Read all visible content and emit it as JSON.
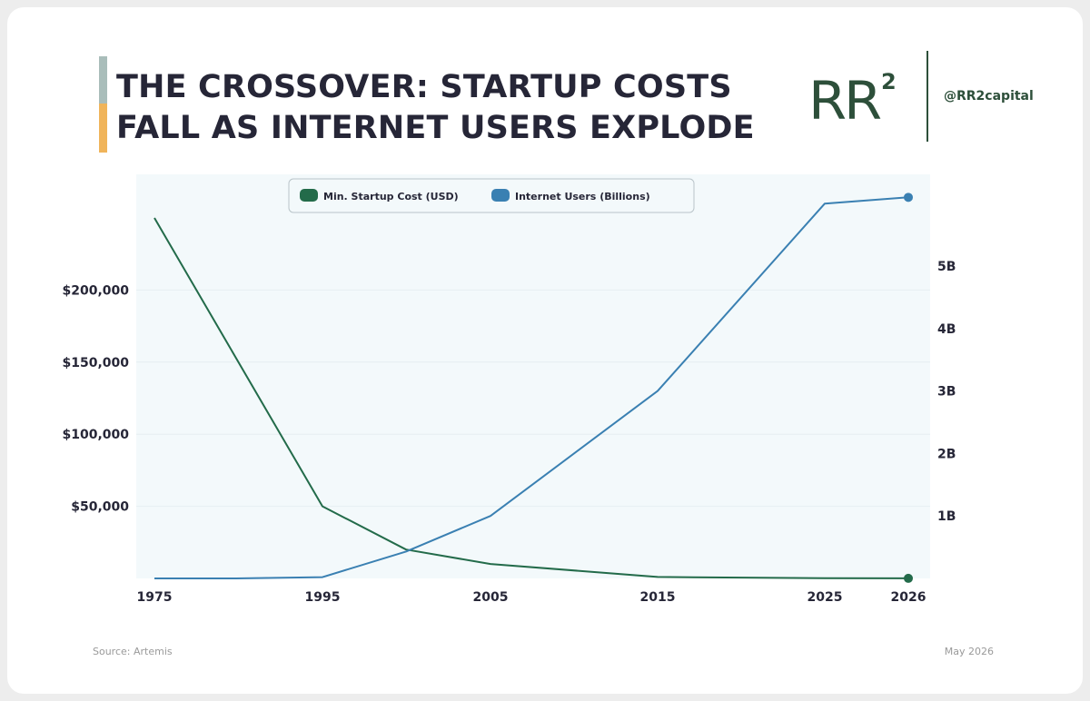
{
  "header": {
    "title_line1": "THE CROSSOVER: STARTUP COSTS",
    "title_line2": "FALL AS INTERNET USERS EXPLODE",
    "logo_text": "RR",
    "logo_superscript": "2",
    "handle": "@RR2capital",
    "accent_colors": [
      "#a9bdba",
      "#f0b45a"
    ],
    "brand_color": "#2d4f3a"
  },
  "footer": {
    "source": "Source: Artemis",
    "date": "May 2026"
  },
  "chart_data": {
    "type": "line",
    "title": "",
    "x": [
      1975,
      1980,
      1995,
      2000,
      2005,
      2015,
      2025,
      2026
    ],
    "x_tick_labels": [
      "1975",
      "1995",
      "2005",
      "2015",
      "2025",
      "2026"
    ],
    "x_ticks": [
      1975,
      1995,
      2005,
      2015,
      2025,
      2026
    ],
    "y_left_ticks": [
      50000,
      100000,
      150000,
      200000
    ],
    "y_left_tick_labels": [
      "$50,000",
      "$100,000",
      "$150,000",
      "$200,000"
    ],
    "y_left_lim": [
      0,
      250000
    ],
    "y_right_ticks": [
      1,
      2,
      3,
      4,
      5
    ],
    "y_right_tick_labels": [
      "1B",
      "2B",
      "3B",
      "4B",
      "5B"
    ],
    "y_right_lim": [
      0,
      5.8
    ],
    "grid": true,
    "legend_placement": "top-center",
    "series": [
      {
        "name": "Min. Startup Cost (USD)",
        "axis": "left",
        "color": "#236b4a",
        "x": [
          1975,
          1995,
          2000,
          2005,
          2015,
          2025,
          2026
        ],
        "values": [
          250000,
          50000,
          20000,
          10000,
          1000,
          100,
          50
        ]
      },
      {
        "name": "Internet Users (Billions)",
        "axis": "right",
        "color": "#3a80b2",
        "x": [
          1975,
          1980,
          1995,
          2000,
          2005,
          2015,
          2025,
          2026
        ],
        "values": [
          0,
          0,
          0.02,
          0.43,
          1.0,
          3.0,
          6.0,
          6.1
        ]
      }
    ]
  }
}
